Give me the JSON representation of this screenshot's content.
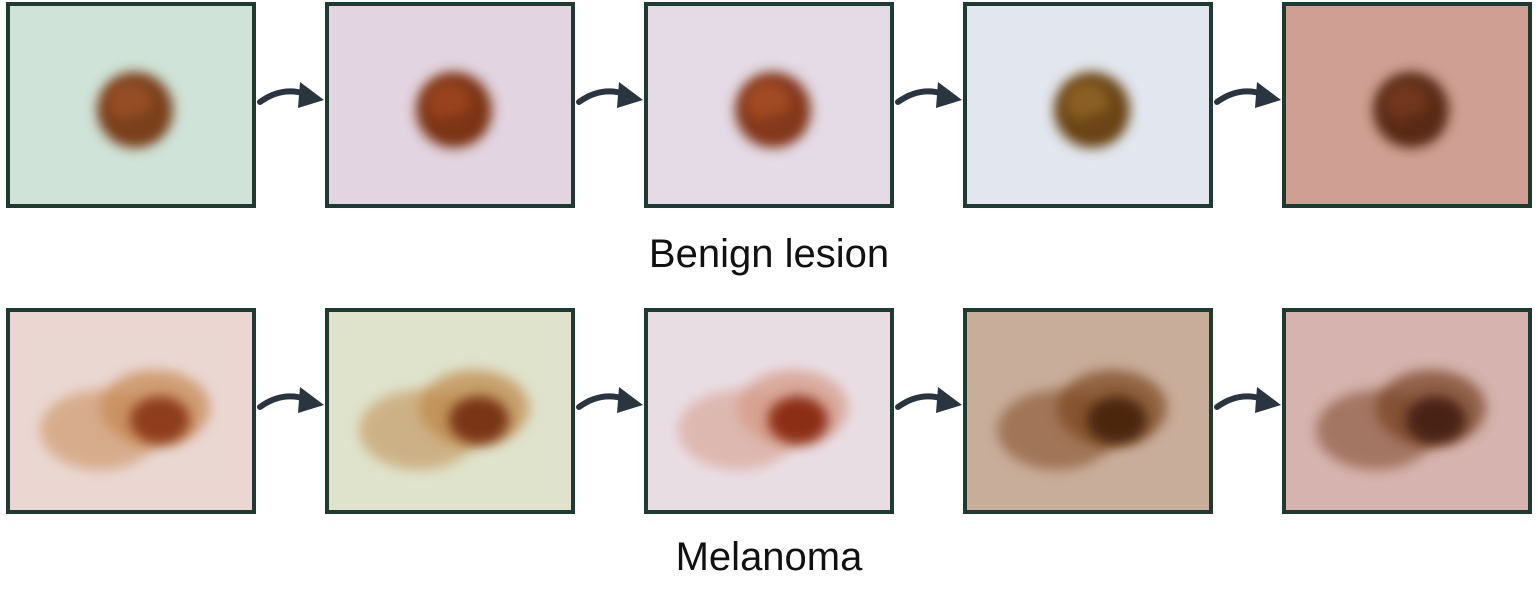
{
  "rows": [
    {
      "label": "Benign lesion",
      "images": [
        {
          "skin": "#cfe3d8",
          "lesion": "#7a3f1c",
          "lesion_mid": "#a0552c",
          "kind": "benign"
        },
        {
          "skin": "#e2d4e0",
          "lesion": "#7b3416",
          "lesion_mid": "#a64a22",
          "kind": "benign"
        },
        {
          "skin": "#e4dbe6",
          "lesion": "#84391a",
          "lesion_mid": "#b05228",
          "kind": "benign"
        },
        {
          "skin": "#e2e6ee",
          "lesion": "#6b4417",
          "lesion_mid": "#9a6a2a",
          "kind": "benign"
        },
        {
          "skin": "#cf9f93",
          "lesion": "#5a2a18",
          "lesion_mid": "#7d3e24",
          "kind": "benign"
        }
      ]
    },
    {
      "label": "Melanoma",
      "images": [
        {
          "skin": "#ead7d2",
          "lesion": "#8f3e1c",
          "lesion_mid": "#c88a55",
          "kind": "melanoma"
        },
        {
          "skin": "#dfe3cc",
          "lesion": "#7a3518",
          "lesion_mid": "#c08a4e",
          "kind": "melanoma"
        },
        {
          "skin": "#e9dde4",
          "lesion": "#8c2f12",
          "lesion_mid": "#d59a86",
          "kind": "melanoma"
        },
        {
          "skin": "#c9ad9b",
          "lesion": "#4b2710",
          "lesion_mid": "#7f4a22",
          "kind": "melanoma"
        },
        {
          "skin": "#d6b3ae",
          "lesion": "#4a2412",
          "lesion_mid": "#7a4426",
          "kind": "melanoma"
        }
      ]
    }
  ],
  "colors": {
    "frame": "#1e3a32",
    "arrow": "#2a3540"
  },
  "icons": {
    "arrow": "curved-arrow-icon"
  }
}
